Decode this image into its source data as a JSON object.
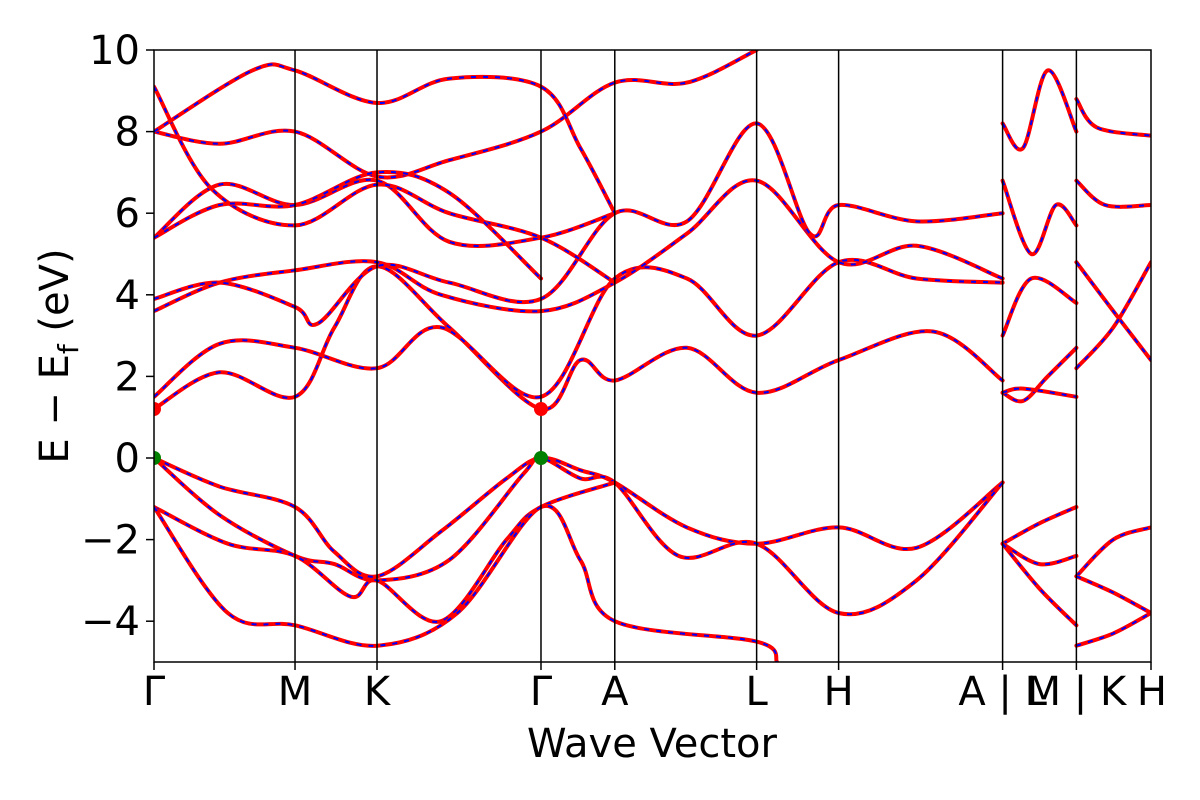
{
  "chart_data": {
    "type": "line",
    "title": "",
    "xlabel": "Wave Vector",
    "ylabel": "E − E_f (eV)",
    "ylabel_main": "E − E",
    "ylabel_sub": "f",
    "ylabel_unit": " (eV)",
    "ylim": [
      -5,
      10
    ],
    "yticks": [
      -4,
      -2,
      0,
      2,
      4,
      6,
      8,
      10
    ],
    "ytick_labels": [
      "−4",
      "−2",
      "0",
      "2",
      "4",
      "6",
      "8",
      "10"
    ],
    "grid": false,
    "legend": "none",
    "xlim": [
      0,
      12.16
    ],
    "kpoints": [
      {
        "x": 0.0,
        "label": "Γ"
      },
      {
        "x": 1.72,
        "label": "M"
      },
      {
        "x": 2.72,
        "label": "K"
      },
      {
        "x": 4.72,
        "label": "Γ"
      },
      {
        "x": 5.62,
        "label": "A"
      },
      {
        "x": 7.35,
        "label": "L"
      },
      {
        "x": 8.35,
        "label": "H"
      },
      {
        "x": 10.35,
        "label": "A | L"
      },
      {
        "x": 11.25,
        "label": "M | K"
      },
      {
        "x": 12.16,
        "label": "H"
      }
    ],
    "colors": {
      "primary": "#ff0000",
      "secondary": "#0000ff",
      "cbm": "#ff0000",
      "vbm": "#008000"
    },
    "band_extrema": [
      {
        "name": "CBM",
        "x": 0.0,
        "y": 1.2,
        "color": "#ff0000"
      },
      {
        "name": "CBM",
        "x": 4.72,
        "y": 1.2,
        "color": "#ff0000"
      },
      {
        "name": "VBM",
        "x": 0.0,
        "y": 0.0,
        "color": "#008000"
      },
      {
        "name": "VBM",
        "x": 4.72,
        "y": 0.0,
        "color": "#008000"
      }
    ],
    "series": [
      {
        "points": [
          [
            0,
            0
          ],
          [
            0.8,
            -0.7
          ],
          [
            1.72,
            -1.2
          ],
          [
            2.2,
            -2.3
          ],
          [
            2.72,
            -2.9
          ],
          [
            3.5,
            -1.8
          ],
          [
            4.3,
            -0.5
          ],
          [
            4.72,
            0
          ],
          [
            5.2,
            -0.3
          ],
          [
            5.62,
            -0.6
          ],
          [
            6.5,
            -1.7
          ],
          [
            7.35,
            -2.1
          ],
          [
            8.35,
            -1.7
          ],
          [
            9.3,
            -2.2
          ],
          [
            10.35,
            -0.6
          ]
        ]
      },
      {
        "points": [
          [
            0,
            0
          ],
          [
            0.8,
            -1.4
          ],
          [
            1.72,
            -2.4
          ],
          [
            2.2,
            -2.6
          ],
          [
            2.72,
            -3.0
          ],
          [
            3.6,
            -2.5
          ],
          [
            4.5,
            -0.4
          ],
          [
            4.72,
            0
          ],
          [
            5.2,
            -0.5
          ],
          [
            5.62,
            -0.6
          ],
          [
            6.4,
            -2.4
          ],
          [
            7.35,
            -2.1
          ],
          [
            8.35,
            -3.8
          ],
          [
            9.3,
            -3.0
          ],
          [
            10.35,
            -0.6
          ]
        ]
      },
      {
        "points": [
          [
            0,
            -1.2
          ],
          [
            0.9,
            -2.1
          ],
          [
            1.72,
            -2.4
          ],
          [
            2.4,
            -3.4
          ],
          [
            2.72,
            -3.0
          ],
          [
            3.5,
            -4.0
          ],
          [
            4.3,
            -2.0
          ],
          [
            4.72,
            -1.2
          ],
          [
            5.62,
            -0.6
          ]
        ]
      },
      {
        "points": [
          [
            0,
            -1.2
          ],
          [
            0.9,
            -3.8
          ],
          [
            1.72,
            -4.1
          ],
          [
            2.72,
            -4.6
          ],
          [
            3.7,
            -3.8
          ],
          [
            4.72,
            -1.2
          ],
          [
            5.2,
            -2.5
          ],
          [
            5.62,
            -4.0
          ],
          [
            7.35,
            -4.5
          ],
          [
            7.6,
            -5.0
          ]
        ]
      },
      {
        "points": [
          [
            0,
            1.2
          ],
          [
            0.8,
            2.1
          ],
          [
            1.72,
            1.5
          ],
          [
            2.2,
            3.2
          ],
          [
            2.72,
            4.7
          ],
          [
            3.6,
            3.2
          ],
          [
            4.72,
            1.2
          ],
          [
            5.2,
            2.4
          ],
          [
            5.62,
            1.9
          ],
          [
            6.5,
            2.7
          ],
          [
            7.35,
            1.6
          ],
          [
            8.35,
            2.4
          ],
          [
            9.5,
            3.1
          ],
          [
            10.35,
            1.9
          ]
        ]
      },
      {
        "points": [
          [
            0,
            1.5
          ],
          [
            0.8,
            2.8
          ],
          [
            1.72,
            2.7
          ],
          [
            2.72,
            2.2
          ],
          [
            3.5,
            3.2
          ],
          [
            4.72,
            1.5
          ],
          [
            5.62,
            4.4
          ],
          [
            6.5,
            4.4
          ],
          [
            7.35,
            3.0
          ],
          [
            8.35,
            4.8
          ],
          [
            9.3,
            4.4
          ],
          [
            10.35,
            4.3
          ]
        ]
      },
      {
        "points": [
          [
            0,
            3.6
          ],
          [
            0.8,
            4.3
          ],
          [
            1.72,
            4.6
          ],
          [
            2.72,
            4.8
          ],
          [
            3.5,
            4.0
          ],
          [
            4.72,
            3.6
          ],
          [
            5.62,
            4.3
          ],
          [
            6.5,
            5.5
          ],
          [
            7.35,
            6.8
          ],
          [
            8.35,
            4.8
          ],
          [
            9.3,
            5.2
          ],
          [
            10.35,
            4.4
          ]
        ]
      },
      {
        "points": [
          [
            0,
            3.9
          ],
          [
            0.8,
            4.3
          ],
          [
            1.72,
            3.7
          ],
          [
            2.0,
            3.3
          ],
          [
            2.72,
            4.7
          ],
          [
            3.6,
            4.3
          ],
          [
            4.72,
            3.9
          ],
          [
            5.62,
            6.0
          ],
          [
            6.5,
            5.8
          ],
          [
            7.35,
            8.2
          ],
          [
            8.0,
            5.5
          ],
          [
            8.35,
            6.2
          ],
          [
            9.3,
            5.8
          ],
          [
            10.35,
            6.0
          ]
        ]
      },
      {
        "points": [
          [
            0,
            5.4
          ],
          [
            0.8,
            6.7
          ],
          [
            1.72,
            6.2
          ],
          [
            2.72,
            6.8
          ],
          [
            3.6,
            5.3
          ],
          [
            4.72,
            5.4
          ],
          [
            5.62,
            6.0
          ]
        ]
      },
      {
        "points": [
          [
            0,
            8.0
          ],
          [
            0.8,
            7.7
          ],
          [
            1.72,
            8.0
          ],
          [
            2.72,
            6.9
          ],
          [
            3.6,
            7.3
          ],
          [
            4.72,
            8.0
          ],
          [
            5.62,
            9.2
          ],
          [
            6.5,
            9.2
          ],
          [
            7.35,
            10.0
          ]
        ]
      },
      {
        "points": [
          [
            0,
            9.1
          ],
          [
            0.7,
            6.6
          ],
          [
            1.72,
            5.7
          ],
          [
            2.72,
            6.7
          ],
          [
            3.6,
            6.0
          ],
          [
            4.72,
            5.4
          ],
          [
            5.62,
            4.3
          ]
        ]
      },
      {
        "points": [
          [
            0,
            8.0
          ],
          [
            1.2,
            9.5
          ],
          [
            1.72,
            9.5
          ],
          [
            2.72,
            8.7
          ],
          [
            3.6,
            9.3
          ],
          [
            4.72,
            9.1
          ],
          [
            5.2,
            7.6
          ],
          [
            5.62,
            6.0
          ]
        ]
      },
      {
        "points": [
          [
            0,
            5.4
          ],
          [
            0.8,
            6.2
          ],
          [
            1.72,
            6.2
          ],
          [
            2.72,
            7.0
          ],
          [
            3.6,
            6.5
          ],
          [
            4.72,
            4.4
          ]
        ]
      },
      {
        "points": [
          [
            10.35,
            8.2
          ],
          [
            10.6,
            7.6
          ],
          [
            10.9,
            9.5
          ],
          [
            11.25,
            8.0
          ]
        ]
      },
      {
        "points": [
          [
            10.35,
            6.8
          ],
          [
            10.7,
            5.0
          ],
          [
            11.0,
            6.2
          ],
          [
            11.25,
            5.7
          ]
        ]
      },
      {
        "points": [
          [
            10.35,
            3.0
          ],
          [
            10.7,
            4.4
          ],
          [
            11.25,
            3.8
          ]
        ]
      },
      {
        "points": [
          [
            10.35,
            1.6
          ],
          [
            10.6,
            1.4
          ],
          [
            10.9,
            2.0
          ],
          [
            11.25,
            2.7
          ]
        ]
      },
      {
        "points": [
          [
            10.35,
            1.6
          ],
          [
            10.6,
            1.7
          ],
          [
            11.25,
            1.5
          ]
        ]
      },
      {
        "points": [
          [
            10.35,
            -2.1
          ],
          [
            10.8,
            -1.6
          ],
          [
            11.25,
            -1.2
          ]
        ]
      },
      {
        "points": [
          [
            10.35,
            -2.1
          ],
          [
            10.8,
            -2.6
          ],
          [
            11.25,
            -2.4
          ]
        ]
      },
      {
        "points": [
          [
            10.35,
            -2.1
          ],
          [
            10.8,
            -3.2
          ],
          [
            11.25,
            -4.1
          ]
        ]
      },
      {
        "points": [
          [
            11.25,
            8.8
          ],
          [
            11.5,
            8.1
          ],
          [
            12.16,
            7.9
          ]
        ]
      },
      {
        "points": [
          [
            11.25,
            6.8
          ],
          [
            11.6,
            6.2
          ],
          [
            12.16,
            6.2
          ]
        ]
      },
      {
        "points": [
          [
            11.25,
            4.8
          ],
          [
            11.7,
            3.6
          ],
          [
            12.16,
            2.4
          ]
        ]
      },
      {
        "points": [
          [
            11.25,
            2.2
          ],
          [
            11.7,
            3.2
          ],
          [
            12.16,
            4.8
          ]
        ]
      },
      {
        "points": [
          [
            11.25,
            -2.9
          ],
          [
            11.7,
            -2.0
          ],
          [
            12.16,
            -1.7
          ]
        ]
      },
      {
        "points": [
          [
            11.25,
            -4.6
          ],
          [
            11.7,
            -4.3
          ],
          [
            12.16,
            -3.8
          ]
        ]
      },
      {
        "points": [
          [
            11.25,
            -2.9
          ],
          [
            11.7,
            -3.3
          ],
          [
            12.16,
            -3.8
          ]
        ]
      }
    ]
  }
}
